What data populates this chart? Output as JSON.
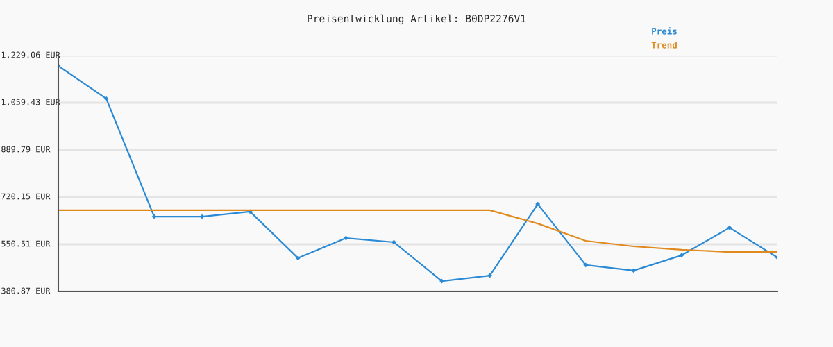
{
  "chart_data": {
    "type": "line",
    "title": "Preisentwicklung Artikel: B0DP2276V1",
    "categories": [
      null,
      null,
      null,
      null,
      null,
      null,
      null,
      null,
      null,
      null,
      null,
      null,
      null,
      null,
      null,
      null
    ],
    "series": [
      {
        "name": "Preis",
        "color": "#2a8ad6",
        "marker": "diamond",
        "values": [
          1192,
          1074,
          650,
          650,
          668,
          501,
          573,
          558,
          418,
          438,
          695,
          476,
          456,
          511,
          610,
          503
        ]
      },
      {
        "name": "Trend",
        "color": "#e08a1e",
        "marker": "none",
        "values": [
          673,
          673,
          673,
          673,
          673,
          673,
          673,
          673,
          673,
          673,
          625,
          563,
          543,
          531,
          523,
          523
        ]
      }
    ],
    "ylim": [
      380.87,
      1229.06
    ],
    "yticks": [
      {
        "value": 380.87,
        "label": "380.87 EUR"
      },
      {
        "value": 550.51,
        "label": "550.51 EUR"
      },
      {
        "value": 720.15,
        "label": "720.15 EUR"
      },
      {
        "value": 889.79,
        "label": "889.79 EUR"
      },
      {
        "value": 1059.43,
        "label": "1,059.43 EUR"
      },
      {
        "value": 1229.06,
        "label": "1,229.06 EUR"
      }
    ],
    "grid": "y",
    "legend": "top right",
    "line_style": "solid"
  }
}
